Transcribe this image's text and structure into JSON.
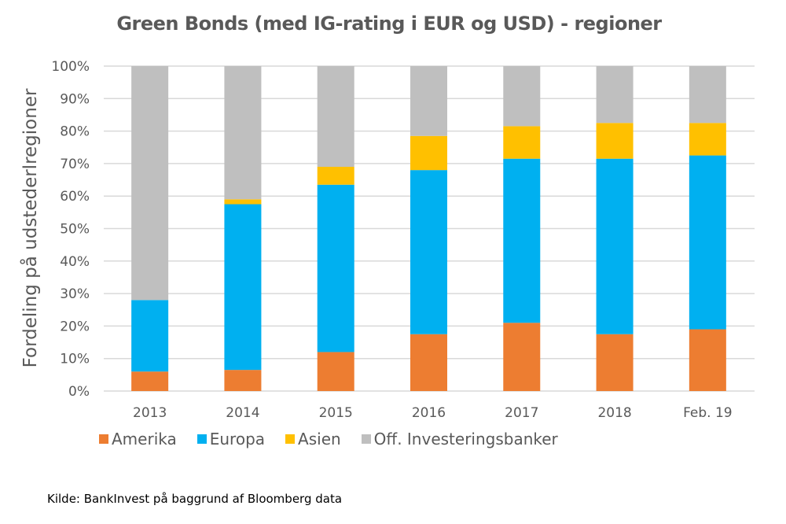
{
  "chart_data": {
    "type": "bar",
    "stacked": true,
    "percent_stacked": true,
    "title": "Green Bonds (med IG-rating i EUR og USD) - regioner",
    "xlabel": "",
    "ylabel": "Fordeling på udstederlregioner",
    "ylim": [
      0,
      100
    ],
    "yticks": [
      "0%",
      "10%",
      "20%",
      "30%",
      "40%",
      "50%",
      "60%",
      "70%",
      "80%",
      "90%",
      "100%"
    ],
    "grid": true,
    "legend_position": "bottom",
    "categories": [
      "2013",
      "2014",
      "2015",
      "2016",
      "2017",
      "2018",
      "Feb. 19"
    ],
    "series": [
      {
        "name": "Amerika",
        "color": "#ED7D31",
        "values": [
          6,
          6.5,
          12,
          17.5,
          21,
          17.5,
          19
        ]
      },
      {
        "name": "Europa",
        "color": "#00B0F0",
        "values": [
          22,
          51,
          51.5,
          50.5,
          50.5,
          54,
          53.5
        ]
      },
      {
        "name": "Asien",
        "color": "#FFC000",
        "values": [
          0,
          1.5,
          5.5,
          10.5,
          10,
          11,
          10
        ]
      },
      {
        "name": "Off. Investeringsbanker",
        "color": "#BFBFBF",
        "values": [
          72,
          41,
          31,
          21.5,
          18.5,
          17.5,
          17.5
        ]
      }
    ]
  },
  "source": "Kilde: BankInvest på baggrund af Bloomberg data"
}
